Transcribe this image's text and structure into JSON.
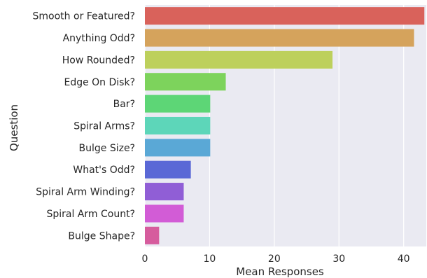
{
  "chart_data": {
    "type": "bar",
    "orientation": "horizontal",
    "categories": [
      "Smooth or Featured?",
      "Anything Odd?",
      "How Rounded?",
      "Edge On Disk?",
      "Bar?",
      "Spiral Arms?",
      "Bulge Size?",
      "What's Odd?",
      "Spiral Arm Winding?",
      "Spiral Arm Count?",
      "Bulge Shape?"
    ],
    "values": [
      43.2,
      41.6,
      29.0,
      12.5,
      10.1,
      10.1,
      10.1,
      7.1,
      6.0,
      6.0,
      2.2
    ],
    "colors": [
      "#d9625b",
      "#d5a35c",
      "#bdd05c",
      "#7dd35c",
      "#5dd676",
      "#5dd6b9",
      "#5aa8d6",
      "#5a68d6",
      "#905ed6",
      "#d25cd6",
      "#d65c9d"
    ],
    "xlabel": "Mean Responses",
    "ylabel": "Question",
    "xticks": [
      0,
      10,
      20,
      30,
      40
    ],
    "xlim": [
      0,
      43.5
    ],
    "grid": true,
    "background": "#eaeaf2"
  }
}
